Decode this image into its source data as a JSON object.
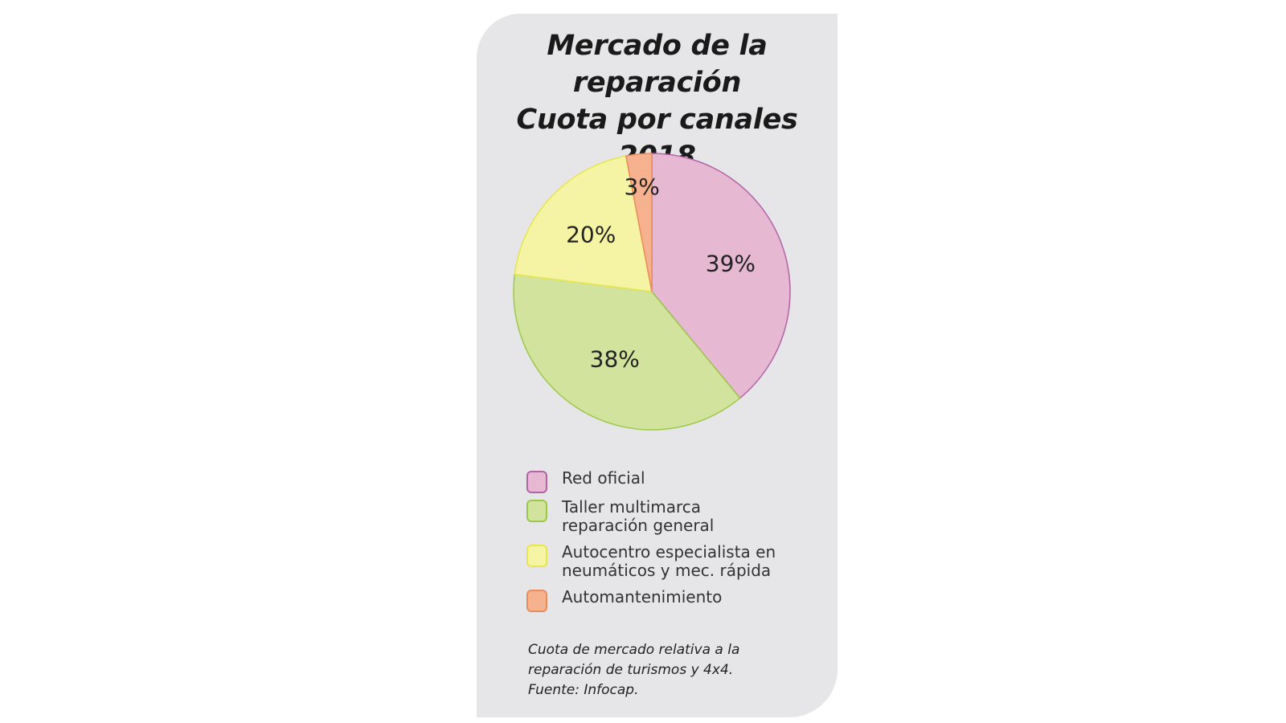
{
  "chart_data": {
    "type": "pie",
    "title_lines": [
      "Mercado de la",
      "reparación",
      "Cuota por canales 2018"
    ],
    "slices": [
      {
        "name": "Red oficial",
        "value": 39,
        "label": "39%",
        "color": "#e6b8d2",
        "stroke": "#b264a8"
      },
      {
        "name": "Taller multimarca reparación general",
        "value": 38,
        "label": "38%",
        "color": "#d2e39d",
        "stroke": "#9cc84a"
      },
      {
        "name": "Autocentro especialista en neumáticos y mec. rápida",
        "value": 20,
        "label": "20%",
        "color": "#f4f4a4",
        "stroke": "#e8e64a"
      },
      {
        "name": "Automantenimiento",
        "value": 3,
        "label": "3%",
        "color": "#f6b28e",
        "stroke": "#e98c5a"
      }
    ],
    "legend": [
      {
        "lines": [
          "Red oficial"
        ],
        "color": "#e6b8d2",
        "stroke": "#b264a8",
        "icon": "square-swatch"
      },
      {
        "lines": [
          "Taller multimarca",
          "reparación general"
        ],
        "color": "#d2e39d",
        "stroke": "#9cc84a",
        "icon": "square-swatch"
      },
      {
        "lines": [
          "Autocentro especialista en",
          "neumáticos y mec. rápida"
        ],
        "color": "#f4f4a4",
        "stroke": "#e8e64a",
        "icon": "square-swatch"
      },
      {
        "lines": [
          "Automantenimiento"
        ],
        "color": "#f6b28e",
        "stroke": "#e98c5a",
        "icon": "square-swatch"
      }
    ],
    "legend_position": "bottom",
    "note_lines": [
      "Cuota de mercado relativa a la",
      "reparación de turismos y 4x4.",
      "Fuente: Infocap."
    ]
  },
  "colors": {
    "card_background": "#e6e6e8",
    "page_background": "#ffffff"
  }
}
